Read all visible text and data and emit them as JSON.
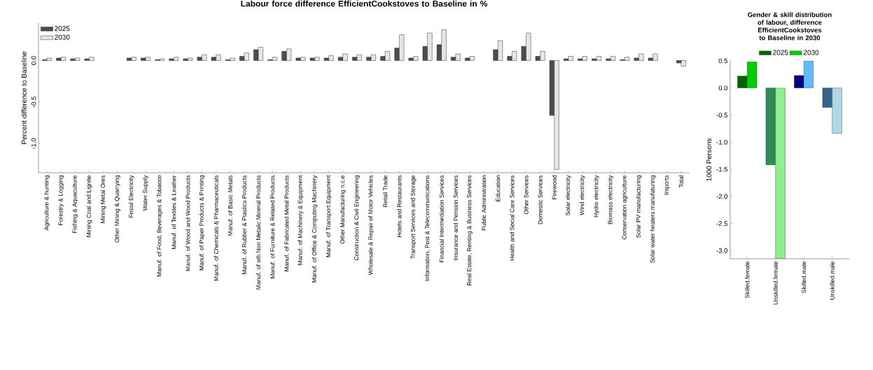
{
  "chart_data": [
    {
      "type": "bar",
      "title": "Labour force difference EfficientCookstoves to Baseline in %",
      "ylabel": "Percent difference to Baseline",
      "categories": [
        "Agriculture & hunting",
        "Forestry & Logging",
        "Fishing & Aquaculture",
        "Mining Coal and Lignite",
        "Mining Metal Ores",
        "Other Mining & Quarrying",
        "Fossil Electricity",
        "Water Supply",
        "Manuf. of Food, Beverages & Tobacco",
        "Manuf. of Textiles & Leather",
        "Manuf. of Wood and Wood Products",
        "Manuf. of Paper Products & Printing",
        "Manuf. of Chemicals & Pharmaceuticals",
        "Manuf. of Basic Metals",
        "Manuf. of Rubber & Plastics Products",
        "Manuf. of oth Non Metalic Mineral Products",
        "Manuf. of Furniture & Related Products",
        "Manuf. of Fabricated Metal Products",
        "Manuf. of Machinery & Equipment",
        "Manuf. of Office & Computing Machinery",
        "Manuf. of Transport Equipment",
        "Other Manufacturing n.c.e",
        "Construction & Civil Engineering",
        "Wholesale & Repair of Motor Vehicles",
        "Retail Trade",
        "Hotels and Restaurants",
        "Transport Services and Storage",
        "Information, Post & Telecommunications",
        "Financial Intermediation Services",
        "Insurance and Pension Services",
        "Real Estate, Renting & Business Services",
        "Public Administration",
        "Education",
        "Health  and Social Care Services",
        "Other Services",
        "Domestic Services",
        "Firewood",
        "Solar electricity",
        "Wind electricity",
        "Hydro electricity",
        "Biomass electricity",
        "Conservation agriculture",
        "Solar PV manufacturing",
        "Solar water heaters manufaturing",
        "Imports",
        "Total"
      ],
      "series": [
        {
          "name": "2025",
          "color": "#4d4d4d",
          "values": [
            0.01,
            0.03,
            0.02,
            0.02,
            0,
            0,
            0.03,
            0.03,
            0.01,
            0.02,
            0.02,
            0.04,
            0.04,
            0.01,
            0.05,
            0.13,
            0.01,
            0.11,
            0.03,
            0.03,
            0.03,
            0.04,
            0.04,
            0.04,
            0.05,
            0.15,
            0.03,
            0.17,
            0.19,
            0.04,
            0.03,
            0,
            0.13,
            0.05,
            0.17,
            0.05,
            -0.66,
            0.02,
            0.02,
            0.02,
            0.02,
            0.01,
            0.03,
            0.03,
            0,
            -0.03
          ]
        },
        {
          "name": "2030",
          "color": "#e6e6e6",
          "values": [
            0.03,
            0.04,
            0.03,
            0.04,
            0,
            0,
            0.04,
            0.04,
            0.02,
            0.04,
            0.03,
            0.07,
            0.07,
            0.03,
            0.09,
            0.16,
            0.04,
            0.14,
            0.04,
            0.04,
            0.06,
            0.08,
            0.07,
            0.07,
            0.11,
            0.31,
            0.05,
            0.33,
            0.37,
            0.08,
            0.05,
            0,
            0.24,
            0.11,
            0.33,
            0.11,
            -1.31,
            0.05,
            0.05,
            0.05,
            0.05,
            0.04,
            0.08,
            0.08,
            0,
            -0.07
          ]
        }
      ],
      "ylim": [
        -1.35,
        0.45
      ],
      "yticks": [
        {
          "value": 0,
          "label": "0.0"
        },
        {
          "value": -0.5,
          "label": "-0.5"
        },
        {
          "value": -1,
          "label": "-1.0"
        }
      ],
      "legend": "top left"
    },
    {
      "type": "bar",
      "title": "Gender & skill distribution of labour, difference EfficientCookstoves to Baseline in 2030",
      "ylabel": "1000 Persons",
      "categories": [
        "Skilled.female",
        "Unskilled.female",
        "Skilled.male",
        "Unskilled.male"
      ],
      "series": [
        {
          "name": "2025",
          "colors": [
            "#006400",
            "#2e8b57",
            "#00008b",
            "#36648b"
          ],
          "values": [
            0.22,
            -1.42,
            0.23,
            -0.36
          ]
        },
        {
          "name": "2030",
          "colors": [
            "#00cd00",
            "#90ee90",
            "#63b8ff",
            "#add8e6"
          ],
          "values": [
            0.48,
            -3.14,
            0.5,
            -0.84
          ]
        }
      ],
      "ylim": [
        -3.15,
        0.5
      ],
      "yticks": [
        {
          "value": 0.5,
          "label": "0.5"
        },
        {
          "value": 0,
          "label": "0.0"
        },
        {
          "value": -0.5,
          "label": "-0.5"
        },
        {
          "value": -1,
          "label": "-1.0"
        },
        {
          "value": -1.5,
          "label": "-1.5"
        },
        {
          "value": -2,
          "label": "-2.0"
        },
        {
          "value": -2.5,
          "label": "-2.5"
        },
        {
          "value": -3,
          "label": "-3.0"
        }
      ],
      "legend": "top"
    }
  ]
}
